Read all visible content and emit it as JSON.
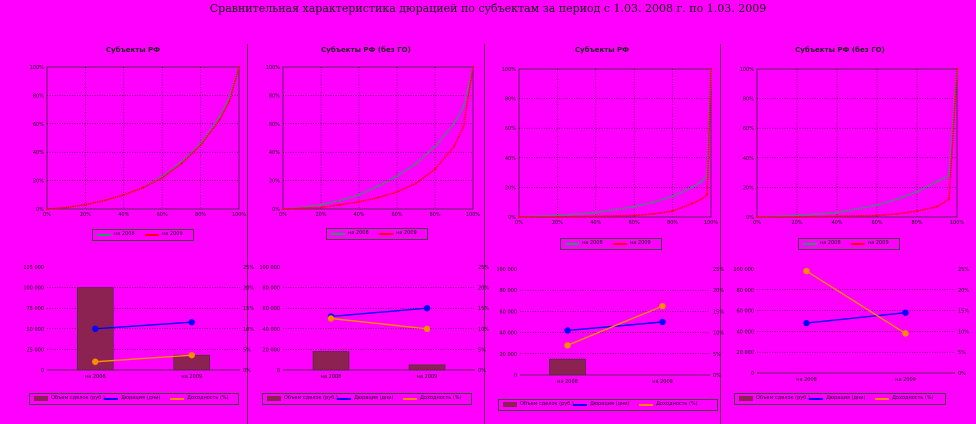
{
  "main_title": "Сравнительная характеристика дюрацией по субъектам за период с 1.03. 2008 г. по 1.03. 2009",
  "colors": {
    "background": "#ff00ff",
    "grid": "#000000",
    "series_2008": "#20a060",
    "series_2009": "#ff0000",
    "bar": "#8b2252",
    "line_blue": "#0000ff",
    "line_orange": "#ff8c00"
  },
  "chart_data": [
    {
      "type": "line",
      "panel": 1,
      "title": "Субъекты РФ",
      "x_ticks": [
        "0%",
        "20%",
        "40%",
        "60%",
        "80%",
        "100%"
      ],
      "y_ticks": [
        "0%",
        "20%",
        "40%",
        "60%",
        "80%",
        "100%"
      ],
      "series": [
        {
          "name": "на 2008",
          "points": [
            [
              0,
              0
            ],
            [
              10,
              1
            ],
            [
              20,
              3
            ],
            [
              30,
              6
            ],
            [
              40,
              10
            ],
            [
              50,
              15
            ],
            [
              60,
              23
            ],
            [
              70,
              33
            ],
            [
              80,
              46
            ],
            [
              90,
              65
            ],
            [
              95,
              78
            ],
            [
              100,
              100
            ]
          ]
        },
        {
          "name": "на 2009",
          "points": [
            [
              0,
              0
            ],
            [
              10,
              1
            ],
            [
              20,
              3
            ],
            [
              30,
              6
            ],
            [
              40,
              10
            ],
            [
              50,
              15
            ],
            [
              60,
              22
            ],
            [
              70,
              32
            ],
            [
              80,
              45
            ],
            [
              90,
              63
            ],
            [
              95,
              76
            ],
            [
              100,
              100
            ]
          ]
        }
      ]
    },
    {
      "type": "line",
      "panel": 2,
      "title": "Субъекты РФ (без ГО)",
      "x_ticks": [
        "0%",
        "20%",
        "40%",
        "60%",
        "80%",
        "100%"
      ],
      "y_ticks": [
        "0%",
        "20%",
        "40%",
        "60%",
        "80%",
        "100%"
      ],
      "series": [
        {
          "name": "на 2008",
          "points": [
            [
              0,
              0
            ],
            [
              10,
              1
            ],
            [
              20,
              3
            ],
            [
              30,
              6
            ],
            [
              40,
              10
            ],
            [
              50,
              16
            ],
            [
              60,
              23
            ],
            [
              70,
              32
            ],
            [
              80,
              44
            ],
            [
              90,
              60
            ],
            [
              95,
              72
            ],
            [
              100,
              100
            ]
          ]
        },
        {
          "name": "на 2009",
          "points": [
            [
              0,
              0
            ],
            [
              10,
              0.5
            ],
            [
              20,
              1
            ],
            [
              30,
              3
            ],
            [
              40,
              5
            ],
            [
              50,
              8
            ],
            [
              60,
              12
            ],
            [
              70,
              18
            ],
            [
              80,
              28
            ],
            [
              90,
              44
            ],
            [
              95,
              58
            ],
            [
              100,
              100
            ]
          ]
        }
      ]
    },
    {
      "type": "line",
      "panel": 3,
      "title": "Субъекты РФ",
      "x_ticks": [
        "0%",
        "20%",
        "40%",
        "60%",
        "80%",
        "100%"
      ],
      "y_ticks": [
        "0%",
        "20%",
        "40%",
        "60%",
        "80%",
        "100%"
      ],
      "series": [
        {
          "name": "на 2008",
          "points": [
            [
              0,
              0
            ],
            [
              20,
              1
            ],
            [
              40,
              3
            ],
            [
              60,
              7
            ],
            [
              70,
              10
            ],
            [
              80,
              14
            ],
            [
              90,
              20
            ],
            [
              95,
              24
            ],
            [
              98,
              28
            ],
            [
              100,
              100
            ]
          ]
        },
        {
          "name": "на 2009",
          "points": [
            [
              0,
              0
            ],
            [
              20,
              0
            ],
            [
              40,
              0.5
            ],
            [
              60,
              1
            ],
            [
              70,
              2
            ],
            [
              80,
              4
            ],
            [
              90,
              9
            ],
            [
              95,
              12
            ],
            [
              98,
              15
            ],
            [
              100,
              100
            ]
          ]
        }
      ]
    },
    {
      "type": "line",
      "panel": 4,
      "title": "Субъекты РФ (без ГО)",
      "x_ticks": [
        "0%",
        "20%",
        "40%",
        "60%",
        "80%",
        "100%"
      ],
      "y_ticks": [
        "0%",
        "20%",
        "40%",
        "60%",
        "80%",
        "100%"
      ],
      "series": [
        {
          "name": "на 2008",
          "points": [
            [
              0,
              0
            ],
            [
              20,
              1
            ],
            [
              40,
              3
            ],
            [
              60,
              8
            ],
            [
              70,
              12
            ],
            [
              80,
              17
            ],
            [
              90,
              24
            ],
            [
              96,
              28
            ],
            [
              100,
              100
            ]
          ]
        },
        {
          "name": "на 2009",
          "points": [
            [
              0,
              0
            ],
            [
              20,
              0
            ],
            [
              40,
              0.5
            ],
            [
              60,
              1
            ],
            [
              70,
              2
            ],
            [
              80,
              4
            ],
            [
              90,
              7
            ],
            [
              96,
              12
            ],
            [
              100,
              100
            ]
          ]
        }
      ]
    },
    {
      "type": "bar",
      "panel": 1,
      "categories": [
        "на 2008",
        "на 2009"
      ],
      "bar_values": [
        100,
        18
      ],
      "line_blue": [
        50,
        58
      ],
      "line_orange": [
        10,
        18
      ],
      "y_ticks_left": [
        "0",
        "25 000",
        "50 000",
        "75 000",
        "100 000",
        "125 000"
      ],
      "y_ticks_right": [
        "0%",
        "5%",
        "10%",
        "15%",
        "20%",
        "25%"
      ],
      "ylim": [
        0,
        125
      ],
      "legend": [
        "Объем сделок (руб.)",
        "Дюрация (дни)",
        "Доходность (%)"
      ]
    },
    {
      "type": "bar",
      "panel": 2,
      "categories": [
        "на 2008",
        "на 2009"
      ],
      "bar_values": [
        18,
        5
      ],
      "line_blue": [
        52,
        60
      ],
      "line_orange": [
        50,
        40
      ],
      "y_ticks_left": [
        "0",
        "20 000",
        "40 000",
        "60 000",
        "80 000",
        "100 000"
      ],
      "y_ticks_right": [
        "0%",
        "5%",
        "10%",
        "15%",
        "20%",
        "25%"
      ],
      "ylim": [
        0,
        100
      ],
      "legend": [
        "Объем сделок (руб.)",
        "Дюрация (дни)",
        "Доходность (%)"
      ]
    },
    {
      "type": "bar",
      "panel": 3,
      "categories": [
        "на 2008",
        "на 2009"
      ],
      "bar_values": [
        15,
        0
      ],
      "line_blue": [
        42,
        50
      ],
      "line_orange": [
        28,
        65
      ],
      "y_ticks_left": [
        "0",
        "20 000",
        "40 000",
        "60 000",
        "80 000",
        "100 000"
      ],
      "y_ticks_right": [
        "0%",
        "5%",
        "10%",
        "15%",
        "20%",
        "25%"
      ],
      "ylim": [
        0,
        100
      ],
      "legend": [
        "Объем сделок (руб.)",
        "Дюрация (дни)",
        "Доходность (%)"
      ]
    },
    {
      "type": "bar",
      "panel": 4,
      "categories": [
        "на 2008",
        "на 2009"
      ],
      "bar_values": [
        0,
        0
      ],
      "line_blue": [
        48,
        58
      ],
      "line_orange": [
        98,
        38
      ],
      "y_ticks_left": [
        "0",
        "20 000",
        "40 000",
        "60 000",
        "80 000",
        "100 000"
      ],
      "y_ticks_right": [
        "0%",
        "5%",
        "10%",
        "15%",
        "20%",
        "25%"
      ],
      "ylim": [
        0,
        100
      ],
      "legend": [
        "Объем сделок (руб.)",
        "Дюрация (дни)",
        "Доходность (%)"
      ]
    }
  ]
}
